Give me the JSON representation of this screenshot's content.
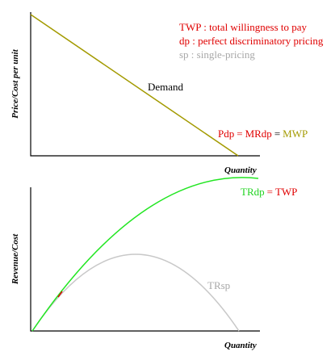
{
  "top_panel": {
    "y_axis_label": "Price/Cost per unit",
    "x_axis_label": "Quantity",
    "legend": [
      "TWP : total willingness to pay",
      "dp : perfect discriminatory pricing",
      "sp : single-pricing"
    ],
    "demand_label": "Demand",
    "line_label": [
      "Pdp",
      "=",
      "MRdp",
      "=",
      "MWP"
    ]
  },
  "bottom_panel": {
    "y_axis_label": "Revenue/Cost",
    "x_axis_label": "Quantity",
    "tr_dp_label": [
      "TRdp",
      "= TWP"
    ],
    "tr_sp_label": "TRsp"
  }
}
